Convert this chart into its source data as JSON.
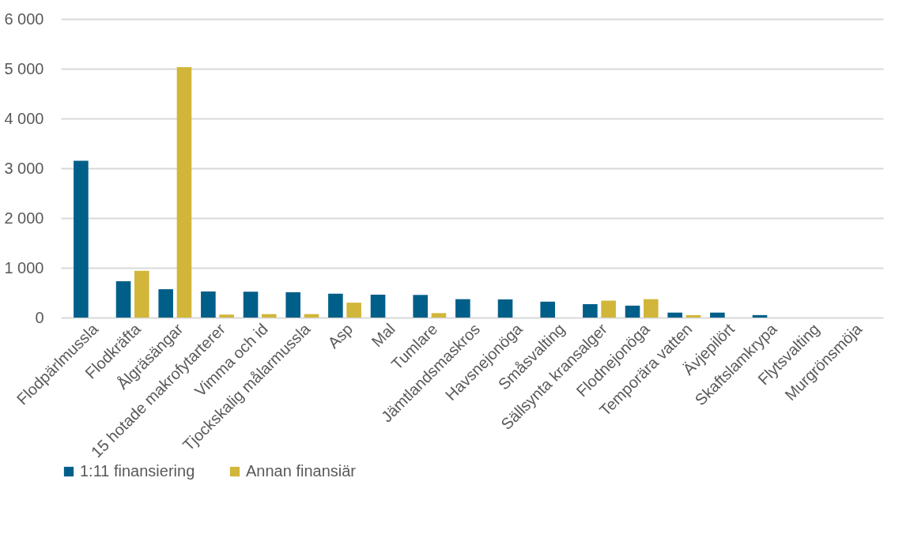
{
  "chart_data": {
    "type": "bar",
    "categories": [
      "Flodpärlmussla",
      "Flodkräfta",
      "Ålgräsängar",
      "15 hotade makrofytarterer",
      "Vimma och id",
      "Tjockskalig målarmussla",
      "Asp",
      "Mal",
      "Tumlare",
      "Jämtlandsmaskros",
      "Havsnejonöga",
      "Småsvalting",
      "Sällsynta kransalger",
      "Flodnejonöga",
      "Temporära vatten",
      "Ävjepilört",
      "Skaftslamkrypa",
      "Flytsvalting",
      "Murgrönsmöja"
    ],
    "series": [
      {
        "name": "1:11 finansiering",
        "color": "#005f89",
        "values": [
          3150,
          730,
          570,
          525,
          520,
          510,
          480,
          460,
          455,
          370,
          365,
          320,
          270,
          240,
          100,
          100,
          50,
          null,
          null
        ]
      },
      {
        "name": "Annan finansiär",
        "color": "#d1b63a",
        "values": [
          null,
          940,
          5030,
          60,
          70,
          70,
          300,
          null,
          90,
          null,
          null,
          null,
          340,
          370,
          50,
          null,
          null,
          null,
          null
        ]
      }
    ],
    "ylim": [
      0,
      6000
    ],
    "yticks": [
      {
        "value": 0,
        "label": "0"
      },
      {
        "value": 1000,
        "label": "1 000"
      },
      {
        "value": 2000,
        "label": "2 000"
      },
      {
        "value": 3000,
        "label": "3 000"
      },
      {
        "value": 4000,
        "label": "4 000"
      },
      {
        "value": 5000,
        "label": "5 000"
      },
      {
        "value": 6000,
        "label": "6 000"
      }
    ],
    "grid": "y",
    "legend": "bottom"
  }
}
